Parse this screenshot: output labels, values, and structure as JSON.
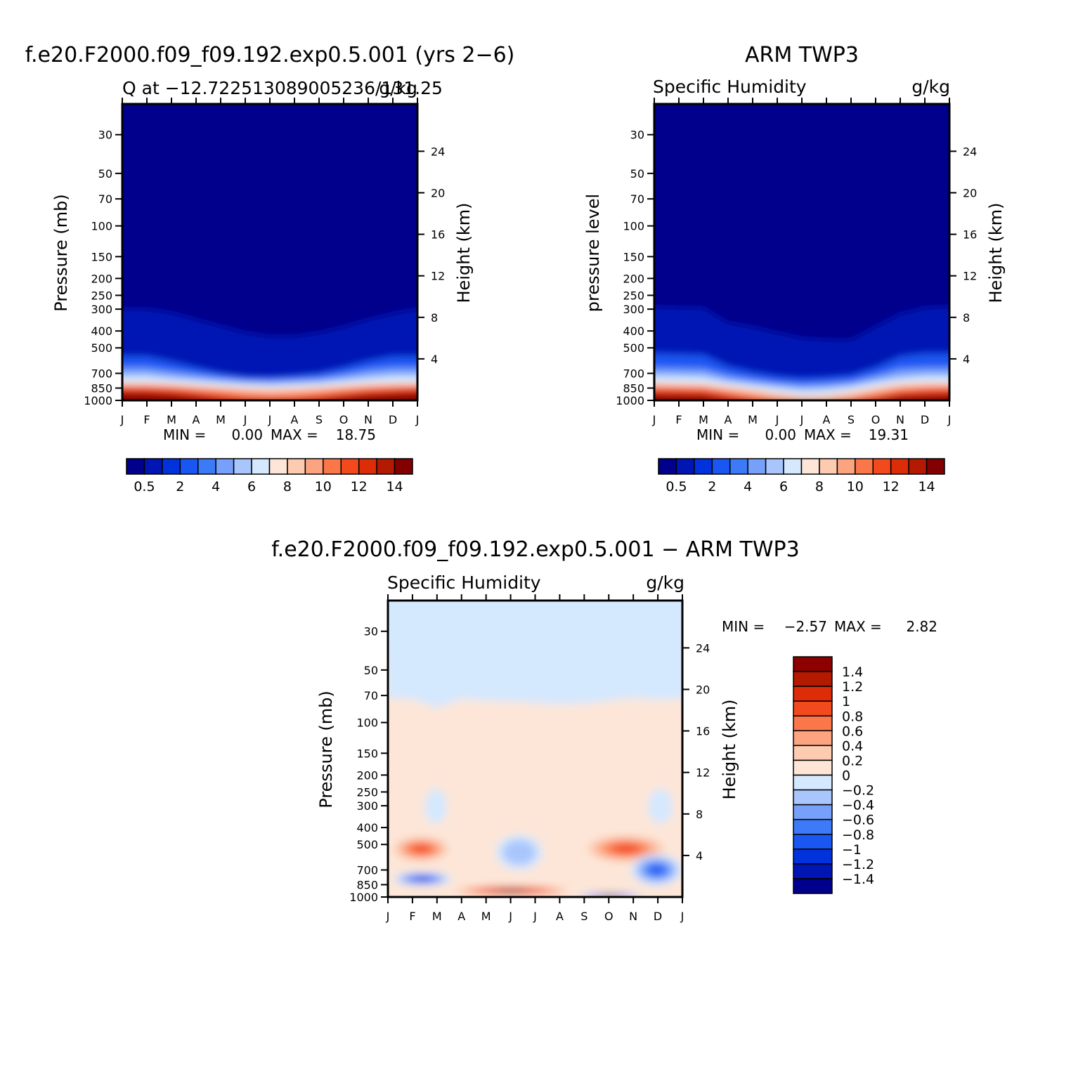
{
  "months": [
    "J",
    "F",
    "M",
    "A",
    "M",
    "J",
    "J",
    "A",
    "S",
    "O",
    "N",
    "D",
    "J"
  ],
  "pressure_ticks": [
    30,
    50,
    70,
    100,
    150,
    200,
    250,
    300,
    400,
    500,
    700,
    850,
    1000
  ],
  "height_ticks": [
    4,
    8,
    12,
    16,
    20,
    24
  ],
  "abs_palette": [
    "#00008c",
    "#0016b4",
    "#0033dc",
    "#1a56f2",
    "#3d7af8",
    "#76a0fa",
    "#a9c6fc",
    "#d4e8fe",
    "#fde6d8",
    "#fccbb0",
    "#fca480",
    "#fb7649",
    "#f24a1d",
    "#dc2d08",
    "#b41a00",
    "#820000"
  ],
  "diff_palette": [
    "#8c0000",
    "#b41a00",
    "#dc2d08",
    "#f24a1d",
    "#fb7649",
    "#fca480",
    "#fccbb0",
    "#fde6d8",
    "#d4e8fe",
    "#a9c6fc",
    "#76a0fa",
    "#3d7af8",
    "#1a56f2",
    "#0033dc",
    "#0016b4",
    "#00008c"
  ],
  "panels": [
    {
      "title": "f.e20.F2000.f09_f09.192.exp0.5.001 (yrs 2−6)",
      "left_label": "Q at −12.722513089005236/131.25",
      "right_label": "g/kg",
      "y_axis_title": "Pressure (mb)",
      "y2_axis_title": "Height (km)",
      "min_label": "MIN =",
      "min_value": "0.00",
      "max_label": "MAX =",
      "max_value": "18.75",
      "colorbar_labels": [
        "0.5",
        "2",
        "4",
        "6",
        "8",
        "10",
        "12",
        "14"
      ]
    },
    {
      "title": "ARM TWP3",
      "left_label": "Specific Humidity",
      "right_label": "g/kg",
      "y_axis_title": "pressure level",
      "y2_axis_title": "Height (km)",
      "min_label": "MIN =",
      "min_value": "0.00",
      "max_label": "MAX =",
      "max_value": "19.31",
      "colorbar_labels": [
        "0.5",
        "2",
        "4",
        "6",
        "8",
        "10",
        "12",
        "14"
      ]
    },
    {
      "title": "f.e20.F2000.f09_f09.192.exp0.5.001 − ARM TWP3",
      "left_label": "Specific Humidity",
      "right_label": "g/kg",
      "y_axis_title": "Pressure (mb)",
      "y2_axis_title": "Height (km)",
      "min_label": "MIN =",
      "min_value": "−2.57",
      "max_label": "MAX =",
      "max_value": "2.82",
      "colorbar_labels": [
        "1.4",
        "1.2",
        "1",
        "0.8",
        "0.6",
        "0.4",
        "0.2",
        "0",
        "−0.2",
        "−0.4",
        "−0.6",
        "−0.8",
        "−1",
        "−1.2",
        "−1.4"
      ]
    }
  ],
  "chart_data": [
    {
      "type": "heatmap",
      "title": "f.e20.F2000.f09_f09.192.exp0.5.001 (yrs 2−6)",
      "x": [
        "J",
        "F",
        "M",
        "A",
        "M",
        "J",
        "J",
        "A",
        "S",
        "O",
        "N",
        "D",
        "J"
      ],
      "ylabel": "Pressure (mb)",
      "y2label": "Height (km)",
      "y_scale": "log",
      "ylim": [
        1000,
        20
      ],
      "contour_levels": [
        0.5,
        1,
        2,
        3,
        4,
        5,
        6,
        7,
        8,
        9,
        10,
        11,
        12,
        13,
        14
      ],
      "min": 0.0,
      "max": 18.75,
      "contour_boundary_pressure_mb": {
        "levels": [
          0.5,
          2,
          4,
          6,
          8,
          10,
          12,
          14
        ],
        "profiles": [
          [
            300,
            560,
            650,
            720,
            790,
            825,
            850,
            910
          ],
          [
            300,
            560,
            650,
            720,
            790,
            825,
            855,
            915
          ],
          [
            315,
            600,
            680,
            745,
            800,
            835,
            870,
            930
          ],
          [
            345,
            650,
            710,
            765,
            815,
            855,
            900,
            960
          ],
          [
            375,
            700,
            740,
            785,
            830,
            875,
            935,
            1000
          ],
          [
            410,
            735,
            765,
            800,
            845,
            900,
            975,
            1000
          ],
          [
            430,
            740,
            770,
            810,
            855,
            915,
            985,
            1000
          ],
          [
            430,
            725,
            760,
            800,
            845,
            905,
            975,
            1000
          ],
          [
            410,
            700,
            745,
            790,
            835,
            885,
            945,
            1000
          ],
          [
            380,
            650,
            710,
            765,
            815,
            860,
            910,
            965
          ],
          [
            345,
            595,
            670,
            740,
            800,
            840,
            880,
            935
          ],
          [
            318,
            560,
            650,
            720,
            790,
            830,
            865,
            920
          ],
          [
            300,
            560,
            650,
            720,
            790,
            825,
            850,
            910
          ]
        ]
      }
    },
    {
      "type": "heatmap",
      "title": "ARM TWP3",
      "x": [
        "J",
        "F",
        "M",
        "A",
        "M",
        "J",
        "J",
        "A",
        "S",
        "O",
        "N",
        "D",
        "J"
      ],
      "ylabel": "pressure level",
      "y2label": "Height (km)",
      "y_scale": "log",
      "ylim": [
        1000,
        20
      ],
      "contour_levels": [
        0.5,
        1,
        2,
        3,
        4,
        5,
        6,
        7,
        8,
        9,
        10,
        11,
        12,
        13,
        14
      ],
      "min": 0.0,
      "max": 19.31,
      "contour_boundary_pressure_mb": {
        "levels": [
          0.5,
          2,
          4,
          6,
          8,
          10,
          12,
          14
        ],
        "profiles": [
          [
            290,
            540,
            650,
            720,
            790,
            830,
            870,
            930
          ],
          [
            295,
            545,
            655,
            725,
            795,
            835,
            875,
            935
          ],
          [
            295,
            550,
            660,
            730,
            800,
            840,
            880,
            940
          ],
          [
            360,
            640,
            720,
            780,
            830,
            880,
            930,
            990
          ],
          [
            380,
            690,
            760,
            810,
            860,
            920,
            990,
            1000
          ],
          [
            410,
            730,
            790,
            840,
            900,
            970,
            1000,
            1000
          ],
          [
            440,
            750,
            810,
            870,
            940,
            1000,
            1000,
            1000
          ],
          [
            450,
            740,
            800,
            860,
            930,
            1000,
            1000,
            1000
          ],
          [
            450,
            720,
            780,
            830,
            890,
            960,
            1000,
            1000
          ],
          [
            380,
            650,
            720,
            780,
            840,
            900,
            960,
            1000
          ],
          [
            320,
            560,
            660,
            740,
            800,
            850,
            900,
            950
          ],
          [
            295,
            540,
            650,
            720,
            790,
            835,
            880,
            940
          ],
          [
            290,
            540,
            650,
            720,
            790,
            830,
            870,
            930
          ]
        ]
      }
    },
    {
      "type": "heatmap",
      "title": "f.e20.F2000.f09_f09.192.exp0.5.001 − ARM TWP3",
      "x": [
        "J",
        "F",
        "M",
        "A",
        "M",
        "J",
        "J",
        "A",
        "S",
        "O",
        "N",
        "D",
        "J"
      ],
      "ylabel": "Pressure (mb)",
      "y2label": "Height (km)",
      "y_scale": "log",
      "ylim": [
        1000,
        20
      ],
      "contour_levels": [
        -1.4,
        -1.2,
        -1,
        -0.8,
        -0.6,
        -0.4,
        -0.2,
        0,
        0.2,
        0.4,
        0.6,
        0.8,
        1,
        1.2,
        1.4
      ],
      "min": -2.57,
      "max": 2.82,
      "background_value_upper": -0.1,
      "background_value_middle": 0.1,
      "zero_contour_pressure_mb": [
        73,
        73,
        83,
        73,
        75,
        76,
        77,
        79,
        78,
        75,
        72,
        74,
        73
      ],
      "features": [
        {
          "region": "Apr–Aug near surface",
          "month_range": [
            2.4,
            7.7
          ],
          "pressure_range": [
            855,
            990
          ],
          "value": 1.4
        },
        {
          "region": "Jan–Mar ~500 mb",
          "month_range": [
            0.0,
            2.7
          ],
          "pressure_range": [
            440,
            640
          ],
          "value": 0.8
        },
        {
          "region": "Sep–Dec ~500 mb",
          "month_range": [
            7.8,
            11.6
          ],
          "pressure_range": [
            430,
            650
          ],
          "value": 0.8
        },
        {
          "region": "Feb ~800 mb",
          "month_range": [
            0.2,
            2.6
          ],
          "pressure_range": [
            720,
            860
          ],
          "value": -1.0
        },
        {
          "region": "Jun ~550 mb",
          "month_range": [
            4.4,
            6.3
          ],
          "pressure_range": [
            440,
            700
          ],
          "value": -0.3
        },
        {
          "region": "Dec ~750 mb",
          "month_range": [
            9.9,
            12.0
          ],
          "pressure_range": [
            570,
            860
          ],
          "value": -0.8
        },
        {
          "region": "Mar ~300 mb",
          "month_range": [
            1.5,
            2.4
          ],
          "pressure_range": [
            240,
            380
          ],
          "value": -0.1
        },
        {
          "region": "Dec ~300 mb",
          "month_range": [
            10.6,
            11.6
          ],
          "pressure_range": [
            240,
            380
          ],
          "value": -0.1
        },
        {
          "region": "Sep–Oct surface",
          "month_range": [
            7.6,
            10.5
          ],
          "pressure_range": [
            970,
            1000
          ],
          "value": -1.4
        }
      ]
    }
  ]
}
